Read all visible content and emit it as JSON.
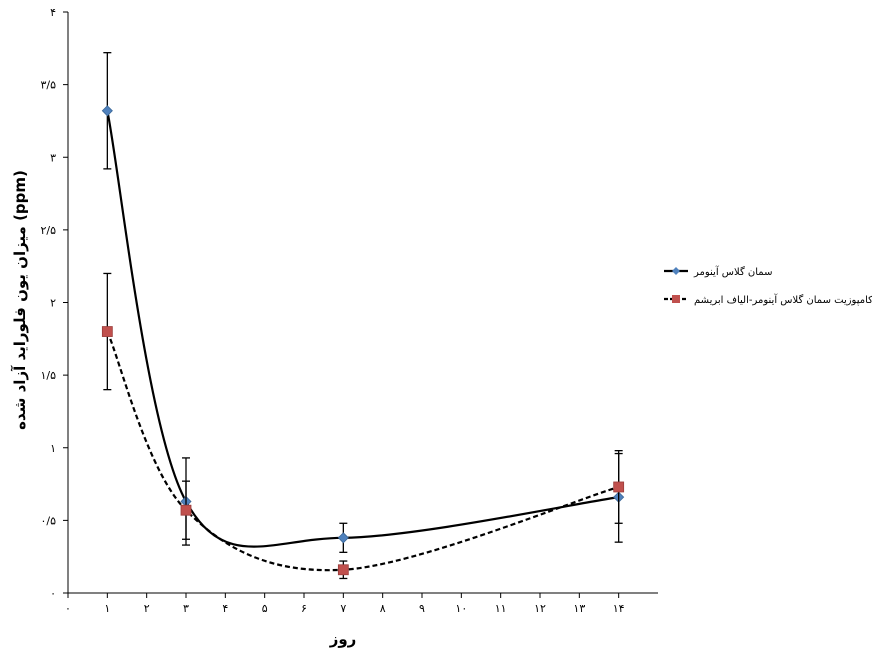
{
  "chart_data": {
    "type": "line",
    "xlabel": "روز",
    "ylabel": "میزان یون فلوراید آزاد شده (ppm)",
    "x_ticks": [
      {
        "value": 0,
        "label": "۰"
      },
      {
        "value": 1,
        "label": "۱"
      },
      {
        "value": 2,
        "label": "۲"
      },
      {
        "value": 3,
        "label": "۳"
      },
      {
        "value": 4,
        "label": "۴"
      },
      {
        "value": 5,
        "label": "۵"
      },
      {
        "value": 6,
        "label": "۶"
      },
      {
        "value": 7,
        "label": "۷"
      },
      {
        "value": 8,
        "label": "۸"
      },
      {
        "value": 9,
        "label": "۹"
      },
      {
        "value": 10,
        "label": "۱۰"
      },
      {
        "value": 11,
        "label": "۱۱"
      },
      {
        "value": 12,
        "label": "۱۲"
      },
      {
        "value": 13,
        "label": "۱۳"
      },
      {
        "value": 14,
        "label": "۱۴"
      }
    ],
    "y_ticks": [
      {
        "value": 0,
        "label": "۰"
      },
      {
        "value": 0.5,
        "label": "۰/۵"
      },
      {
        "value": 1,
        "label": "۱"
      },
      {
        "value": 1.5,
        "label": "۱/۵"
      },
      {
        "value": 2,
        "label": "۲"
      },
      {
        "value": 2.5,
        "label": "۲/۵"
      },
      {
        "value": 3,
        "label": "۳"
      },
      {
        "value": 3.5,
        "label": "۳/۵"
      },
      {
        "value": 4,
        "label": "۴"
      }
    ],
    "xlim": [
      0,
      15
    ],
    "ylim": [
      0,
      4
    ],
    "legend_position": "right",
    "series": [
      {
        "name": "سمان گلاس آینومر",
        "color": "#4F81BD",
        "marker": "diamond",
        "line_style": "solid",
        "points": [
          {
            "x": 1,
            "y": 3.32,
            "err_low": 2.92,
            "err_high": 3.72
          },
          {
            "x": 3,
            "y": 0.63,
            "err_low": 0.33,
            "err_high": 0.93
          },
          {
            "x": 7,
            "y": 0.38,
            "err_low": 0.28,
            "err_high": 0.48
          },
          {
            "x": 14,
            "y": 0.66,
            "err_low": 0.35,
            "err_high": 0.96
          }
        ]
      },
      {
        "name": "کامپوزیت سمان گلاس آینومر-الیاف ابریشم",
        "color": "#C0504D",
        "marker": "square",
        "line_style": "dashed",
        "points": [
          {
            "x": 1,
            "y": 1.8,
            "err_low": 1.4,
            "err_high": 2.2
          },
          {
            "x": 3,
            "y": 0.57,
            "err_low": 0.37,
            "err_high": 0.77
          },
          {
            "x": 7,
            "y": 0.16,
            "err_low": 0.1,
            "err_high": 0.22
          },
          {
            "x": 14,
            "y": 0.73,
            "err_low": 0.48,
            "err_high": 0.98
          }
        ]
      }
    ]
  }
}
